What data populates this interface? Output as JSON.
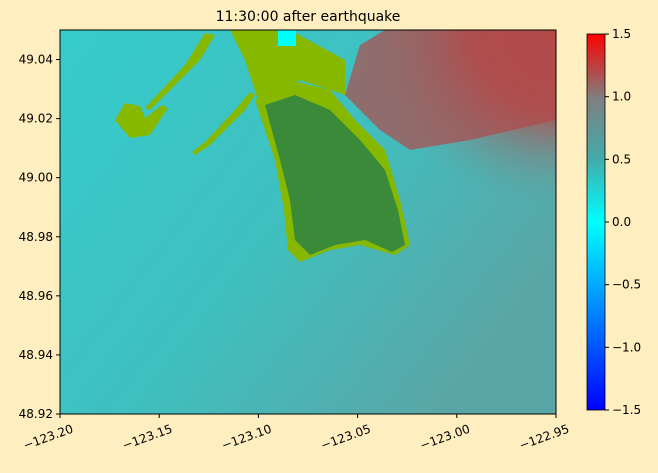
{
  "chart_data": {
    "type": "image",
    "title": "11:30:00 after earthquake",
    "xlim": [
      -123.2,
      -122.95
    ],
    "ylim": [
      48.92,
      49.05
    ],
    "xticks": [
      {
        "value": -123.2,
        "label": "−123.20"
      },
      {
        "value": -123.15,
        "label": "−123.15"
      },
      {
        "value": -123.1,
        "label": "−123.10"
      },
      {
        "value": -123.05,
        "label": "−123.05"
      },
      {
        "value": -123.0,
        "label": "−123.00"
      },
      {
        "value": -122.95,
        "label": "−122.95"
      }
    ],
    "yticks": [
      {
        "value": 48.92,
        "label": "48.92"
      },
      {
        "value": 48.94,
        "label": "48.94"
      },
      {
        "value": 48.96,
        "label": "48.96"
      },
      {
        "value": 48.98,
        "label": "48.98"
      },
      {
        "value": 49.0,
        "label": "49.00"
      },
      {
        "value": 49.02,
        "label": "49.02"
      },
      {
        "value": 49.04,
        "label": "49.04"
      }
    ],
    "clim": [
      -1.5,
      1.5
    ],
    "cticks": [
      {
        "value": -1.5,
        "label": "−1.5"
      },
      {
        "value": -1.0,
        "label": "−1.0"
      },
      {
        "value": -0.5,
        "label": "−0.5"
      },
      {
        "value": 0.0,
        "label": "0.0"
      },
      {
        "value": 0.5,
        "label": "0.5"
      },
      {
        "value": 1.0,
        "label": "1.0"
      },
      {
        "value": 1.5,
        "label": "1.5"
      }
    ]
  }
}
